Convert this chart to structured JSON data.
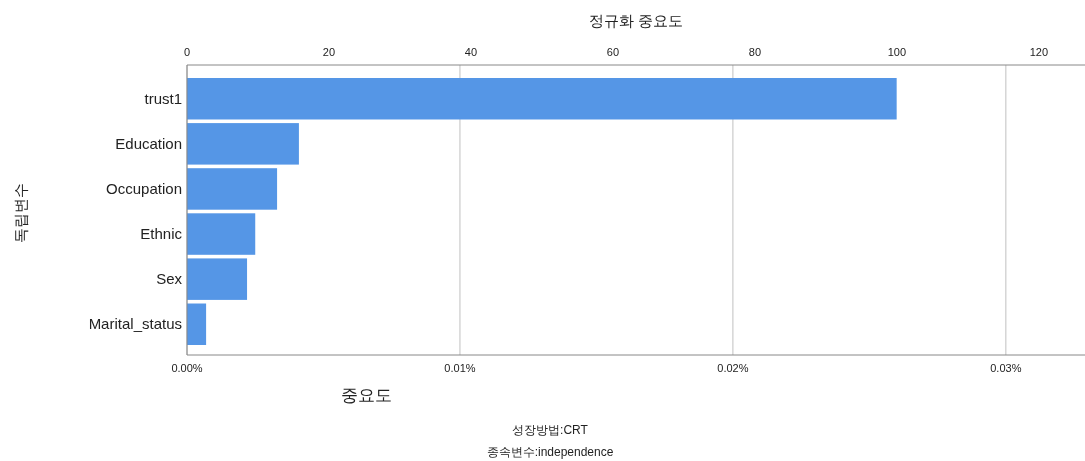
{
  "chart_data": {
    "type": "bar",
    "orientation": "horizontal",
    "xlabel": "중요도",
    "x2label": "정규화 중요도",
    "ylabel": "독립변수",
    "categories": [
      "trust1",
      "Education",
      "Occupation",
      "Ethnic",
      "Sex",
      "Marital_status"
    ],
    "values": [
      0.026,
      0.0041,
      0.0033,
      0.0025,
      0.0022,
      0.0007
    ],
    "color": "#5596e6",
    "xlim": [
      0,
      0.0329
    ],
    "xticks": [
      {
        "value": 0,
        "label": "0.00%"
      },
      {
        "value": 0.01,
        "label": "0.01%"
      },
      {
        "value": 0.02,
        "label": "0.02%"
      },
      {
        "value": 0.03,
        "label": "0.03%"
      }
    ],
    "x2lim": [
      0,
      126.5
    ],
    "x2ticks": [
      0,
      20,
      40,
      60,
      80,
      100,
      120
    ],
    "grid": "x",
    "annotations": [
      "성장방법:CRT",
      "종속변수:independence"
    ]
  }
}
